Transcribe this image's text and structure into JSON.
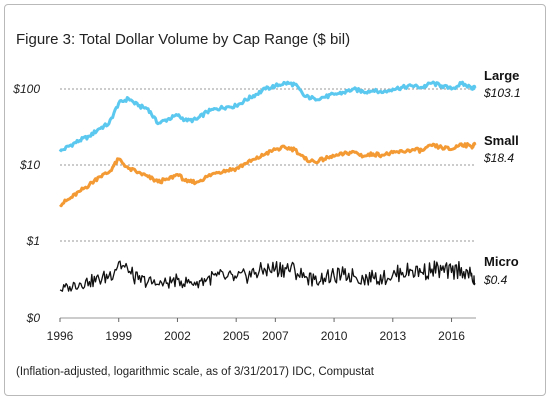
{
  "chart_data": {
    "type": "line",
    "title": "Figure 3: Total Dollar Volume by Cap Range ($ bil)",
    "note": "(Inflation-adjusted, logarithmic scale, as of 3/31/2017) IDC, Compustat",
    "xlabel": "",
    "ylabel": "",
    "y_scale": "log",
    "x_range": [
      1996,
      2017.25
    ],
    "x_ticks": [
      "1996",
      "1999",
      "2002",
      "2005",
      "2007",
      "2010",
      "2013",
      "2016"
    ],
    "y_ticks": [
      "$0",
      "$1",
      "$10",
      "$100"
    ],
    "grid": "horizontal",
    "legend": "right, end of each series",
    "series": [
      {
        "name": "Large",
        "end_label": "$103.1",
        "color": "#5bc8ef",
        "x": [
          1996,
          1996.5,
          1997,
          1997.5,
          1998,
          1998.5,
          1999,
          1999.5,
          2000,
          2000.5,
          2001,
          2001.5,
          2002,
          2002.5,
          2003,
          2003.5,
          2004,
          2004.5,
          2005,
          2005.5,
          2006,
          2006.5,
          2007,
          2007.5,
          2008,
          2008.5,
          2009,
          2009.5,
          2010,
          2010.5,
          2011,
          2011.5,
          2012,
          2012.5,
          2013,
          2013.5,
          2014,
          2014.5,
          2015,
          2015.5,
          2016,
          2016.5,
          2017,
          2017.2
        ],
        "y": [
          15,
          18,
          21,
          24,
          30,
          35,
          65,
          75,
          60,
          55,
          35,
          40,
          45,
          38,
          40,
          50,
          55,
          58,
          60,
          72,
          85,
          100,
          110,
          120,
          115,
          80,
          75,
          78,
          85,
          90,
          100,
          92,
          95,
          90,
          100,
          105,
          110,
          105,
          120,
          110,
          100,
          118,
          105,
          103.1
        ]
      },
      {
        "name": "Small",
        "end_label": "$18.4",
        "color": "#f49a34",
        "x": [
          1996,
          1996.5,
          1997,
          1997.5,
          1998,
          1998.5,
          1999,
          1999.5,
          2000,
          2000.5,
          2001,
          2001.5,
          2002,
          2002.5,
          2003,
          2003.5,
          2004,
          2004.5,
          2005,
          2005.5,
          2006,
          2006.5,
          2007,
          2007.5,
          2008,
          2008.5,
          2009,
          2009.5,
          2010,
          2010.5,
          2011,
          2011.5,
          2012,
          2012.5,
          2013,
          2013.5,
          2014,
          2014.5,
          2015,
          2015.5,
          2016,
          2016.5,
          2017,
          2017.2
        ],
        "y": [
          3,
          3.6,
          4.5,
          5.5,
          7,
          8,
          12,
          9,
          8,
          7,
          6,
          6.5,
          7.5,
          6,
          6,
          7,
          8,
          8.5,
          9,
          10.5,
          12,
          14,
          16,
          17,
          16,
          12,
          11,
          12,
          13,
          14,
          15,
          13,
          14,
          13.5,
          14.5,
          15,
          16,
          15.5,
          18,
          17,
          16,
          19,
          17.5,
          18.4
        ]
      },
      {
        "name": "Micro",
        "end_label": "$0.4",
        "color": "#111111",
        "x": [
          1996,
          1996.5,
          1997,
          1997.5,
          1998,
          1998.5,
          1999,
          1999.5,
          2000,
          2000.5,
          2001,
          2001.5,
          2002,
          2002.5,
          2003,
          2003.5,
          2004,
          2004.5,
          2005,
          2005.5,
          2006,
          2006.5,
          2007,
          2007.5,
          2008,
          2008.5,
          2009,
          2009.5,
          2010,
          2010.5,
          2011,
          2011.5,
          2012,
          2012.5,
          2013,
          2013.5,
          2014,
          2014.5,
          2015,
          2015.5,
          2016,
          2016.5,
          2017,
          2017.2
        ],
        "y": [
          0.3,
          0.35,
          0.4,
          0.42,
          0.45,
          0.5,
          0.7,
          0.55,
          0.45,
          0.42,
          0.38,
          0.4,
          0.45,
          0.4,
          0.42,
          0.45,
          0.5,
          0.48,
          0.47,
          0.5,
          0.55,
          0.58,
          0.6,
          0.62,
          0.58,
          0.48,
          0.45,
          0.47,
          0.5,
          0.52,
          0.5,
          0.46,
          0.48,
          0.47,
          0.52,
          0.55,
          0.58,
          0.55,
          0.6,
          0.58,
          0.55,
          0.62,
          0.5,
          0.4
        ]
      }
    ]
  }
}
